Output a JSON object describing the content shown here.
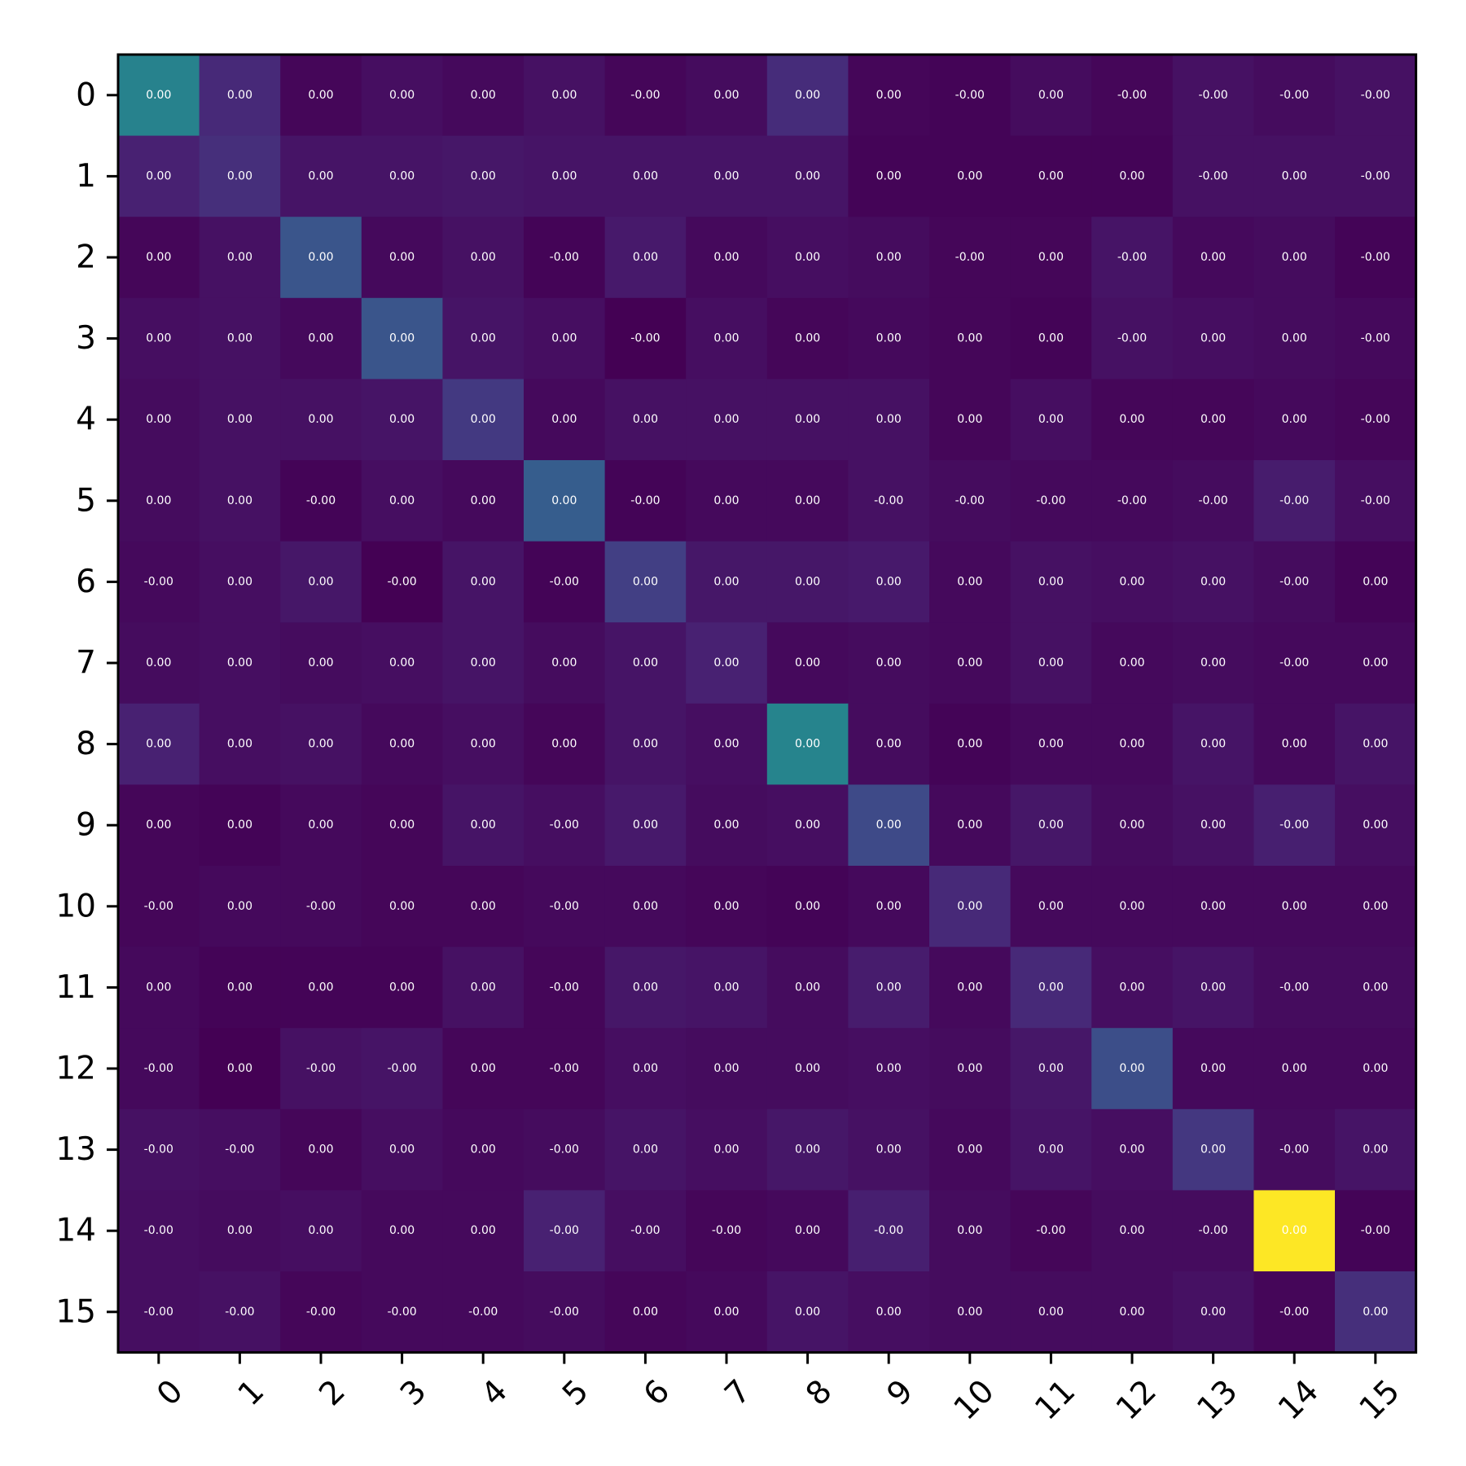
{
  "chart_data": {
    "type": "heatmap",
    "title": "",
    "xlabel": "",
    "ylabel": "",
    "x_categories": [
      "0",
      "1",
      "2",
      "3",
      "4",
      "5",
      "6",
      "7",
      "8",
      "9",
      "10",
      "11",
      "12",
      "13",
      "14",
      "15"
    ],
    "y_categories": [
      "0",
      "1",
      "2",
      "3",
      "4",
      "5",
      "6",
      "7",
      "8",
      "9",
      "10",
      "11",
      "12",
      "13",
      "14",
      "15"
    ],
    "colormap": "viridis",
    "intensity_range": [
      0,
      1
    ],
    "intensity": [
      [
        0.55,
        0.15,
        0.02,
        0.05,
        0.03,
        0.06,
        0.02,
        0.04,
        0.16,
        0.02,
        0.01,
        0.04,
        0.02,
        0.06,
        0.04,
        0.06
      ],
      [
        0.12,
        0.17,
        0.07,
        0.07,
        0.08,
        0.07,
        0.07,
        0.07,
        0.07,
        0.01,
        0.01,
        0.01,
        0.01,
        0.06,
        0.06,
        0.06
      ],
      [
        0.02,
        0.06,
        0.33,
        0.03,
        0.06,
        0.01,
        0.09,
        0.03,
        0.05,
        0.04,
        0.02,
        0.02,
        0.07,
        0.03,
        0.04,
        0.01
      ],
      [
        0.05,
        0.06,
        0.03,
        0.33,
        0.07,
        0.05,
        0.0,
        0.05,
        0.02,
        0.03,
        0.02,
        0.01,
        0.06,
        0.05,
        0.04,
        0.03
      ],
      [
        0.04,
        0.06,
        0.06,
        0.07,
        0.21,
        0.03,
        0.06,
        0.06,
        0.06,
        0.06,
        0.02,
        0.05,
        0.02,
        0.02,
        0.03,
        0.02
      ],
      [
        0.04,
        0.06,
        0.01,
        0.05,
        0.03,
        0.37,
        0.01,
        0.03,
        0.03,
        0.06,
        0.04,
        0.03,
        0.03,
        0.04,
        0.1,
        0.05
      ],
      [
        0.03,
        0.05,
        0.08,
        0.0,
        0.07,
        0.01,
        0.23,
        0.08,
        0.08,
        0.09,
        0.03,
        0.06,
        0.05,
        0.06,
        0.04,
        0.01
      ],
      [
        0.04,
        0.05,
        0.04,
        0.05,
        0.07,
        0.04,
        0.07,
        0.12,
        0.03,
        0.04,
        0.03,
        0.06,
        0.03,
        0.04,
        0.03,
        0.03
      ],
      [
        0.12,
        0.05,
        0.06,
        0.03,
        0.05,
        0.02,
        0.07,
        0.05,
        0.56,
        0.04,
        0.01,
        0.03,
        0.03,
        0.07,
        0.03,
        0.07
      ],
      [
        0.02,
        0.01,
        0.03,
        0.02,
        0.07,
        0.05,
        0.09,
        0.04,
        0.05,
        0.28,
        0.03,
        0.08,
        0.04,
        0.06,
        0.11,
        0.05
      ],
      [
        0.02,
        0.03,
        0.03,
        0.02,
        0.02,
        0.03,
        0.03,
        0.02,
        0.01,
        0.03,
        0.15,
        0.03,
        0.03,
        0.03,
        0.03,
        0.03
      ],
      [
        0.03,
        0.01,
        0.01,
        0.01,
        0.06,
        0.02,
        0.08,
        0.07,
        0.04,
        0.1,
        0.03,
        0.15,
        0.05,
        0.07,
        0.04,
        0.04
      ],
      [
        0.03,
        0.0,
        0.06,
        0.07,
        0.02,
        0.02,
        0.05,
        0.04,
        0.04,
        0.05,
        0.04,
        0.08,
        0.3,
        0.03,
        0.03,
        0.03
      ],
      [
        0.06,
        0.05,
        0.02,
        0.05,
        0.03,
        0.04,
        0.07,
        0.05,
        0.08,
        0.06,
        0.03,
        0.07,
        0.05,
        0.2,
        0.04,
        0.07
      ],
      [
        0.05,
        0.04,
        0.05,
        0.03,
        0.03,
        0.12,
        0.05,
        0.02,
        0.03,
        0.11,
        0.04,
        0.02,
        0.04,
        0.04,
        1.0,
        0.01
      ],
      [
        0.05,
        0.06,
        0.02,
        0.03,
        0.03,
        0.04,
        0.02,
        0.03,
        0.07,
        0.05,
        0.04,
        0.04,
        0.04,
        0.06,
        0.02,
        0.17
      ]
    ],
    "cell_labels": [
      [
        "0.00",
        "0.00",
        "0.00",
        "0.00",
        "0.00",
        "0.00",
        "-0.00",
        "0.00",
        "0.00",
        "0.00",
        "-0.00",
        "0.00",
        "-0.00",
        "-0.00",
        "-0.00",
        "-0.00"
      ],
      [
        "0.00",
        "0.00",
        "0.00",
        "0.00",
        "0.00",
        "0.00",
        "0.00",
        "0.00",
        "0.00",
        "0.00",
        "0.00",
        "0.00",
        "0.00",
        "-0.00",
        "0.00",
        "-0.00"
      ],
      [
        "0.00",
        "0.00",
        "0.00",
        "0.00",
        "0.00",
        "-0.00",
        "0.00",
        "0.00",
        "0.00",
        "0.00",
        "-0.00",
        "0.00",
        "-0.00",
        "0.00",
        "0.00",
        "-0.00"
      ],
      [
        "0.00",
        "0.00",
        "0.00",
        "0.00",
        "0.00",
        "0.00",
        "-0.00",
        "0.00",
        "0.00",
        "0.00",
        "0.00",
        "0.00",
        "-0.00",
        "0.00",
        "0.00",
        "-0.00"
      ],
      [
        "0.00",
        "0.00",
        "0.00",
        "0.00",
        "0.00",
        "0.00",
        "0.00",
        "0.00",
        "0.00",
        "0.00",
        "0.00",
        "0.00",
        "0.00",
        "0.00",
        "0.00",
        "-0.00"
      ],
      [
        "0.00",
        "0.00",
        "-0.00",
        "0.00",
        "0.00",
        "0.00",
        "-0.00",
        "0.00",
        "0.00",
        "-0.00",
        "-0.00",
        "-0.00",
        "-0.00",
        "-0.00",
        "-0.00",
        "-0.00"
      ],
      [
        "-0.00",
        "0.00",
        "0.00",
        "-0.00",
        "0.00",
        "-0.00",
        "0.00",
        "0.00",
        "0.00",
        "0.00",
        "0.00",
        "0.00",
        "0.00",
        "0.00",
        "-0.00",
        "0.00"
      ],
      [
        "0.00",
        "0.00",
        "0.00",
        "0.00",
        "0.00",
        "0.00",
        "0.00",
        "0.00",
        "0.00",
        "0.00",
        "0.00",
        "0.00",
        "0.00",
        "0.00",
        "-0.00",
        "0.00"
      ],
      [
        "0.00",
        "0.00",
        "0.00",
        "0.00",
        "0.00",
        "0.00",
        "0.00",
        "0.00",
        "0.00",
        "0.00",
        "0.00",
        "0.00",
        "0.00",
        "0.00",
        "0.00",
        "0.00"
      ],
      [
        "0.00",
        "0.00",
        "0.00",
        "0.00",
        "0.00",
        "-0.00",
        "0.00",
        "0.00",
        "0.00",
        "0.00",
        "0.00",
        "0.00",
        "0.00",
        "0.00",
        "-0.00",
        "0.00"
      ],
      [
        "-0.00",
        "0.00",
        "-0.00",
        "0.00",
        "0.00",
        "-0.00",
        "0.00",
        "0.00",
        "0.00",
        "0.00",
        "0.00",
        "0.00",
        "0.00",
        "0.00",
        "0.00",
        "0.00"
      ],
      [
        "0.00",
        "0.00",
        "0.00",
        "0.00",
        "0.00",
        "-0.00",
        "0.00",
        "0.00",
        "0.00",
        "0.00",
        "0.00",
        "0.00",
        "0.00",
        "0.00",
        "-0.00",
        "0.00"
      ],
      [
        "-0.00",
        "0.00",
        "-0.00",
        "-0.00",
        "0.00",
        "-0.00",
        "0.00",
        "0.00",
        "0.00",
        "0.00",
        "0.00",
        "0.00",
        "0.00",
        "0.00",
        "0.00",
        "0.00"
      ],
      [
        "-0.00",
        "-0.00",
        "0.00",
        "0.00",
        "0.00",
        "-0.00",
        "0.00",
        "0.00",
        "0.00",
        "0.00",
        "0.00",
        "0.00",
        "0.00",
        "0.00",
        "-0.00",
        "0.00"
      ],
      [
        "-0.00",
        "0.00",
        "0.00",
        "0.00",
        "0.00",
        "-0.00",
        "-0.00",
        "-0.00",
        "0.00",
        "-0.00",
        "0.00",
        "-0.00",
        "0.00",
        "-0.00",
        "0.00",
        "-0.00"
      ],
      [
        "-0.00",
        "-0.00",
        "-0.00",
        "-0.00",
        "-0.00",
        "-0.00",
        "0.00",
        "0.00",
        "0.00",
        "0.00",
        "0.00",
        "0.00",
        "0.00",
        "0.00",
        "-0.00",
        "0.00"
      ]
    ],
    "grid": false,
    "legend": "none"
  }
}
